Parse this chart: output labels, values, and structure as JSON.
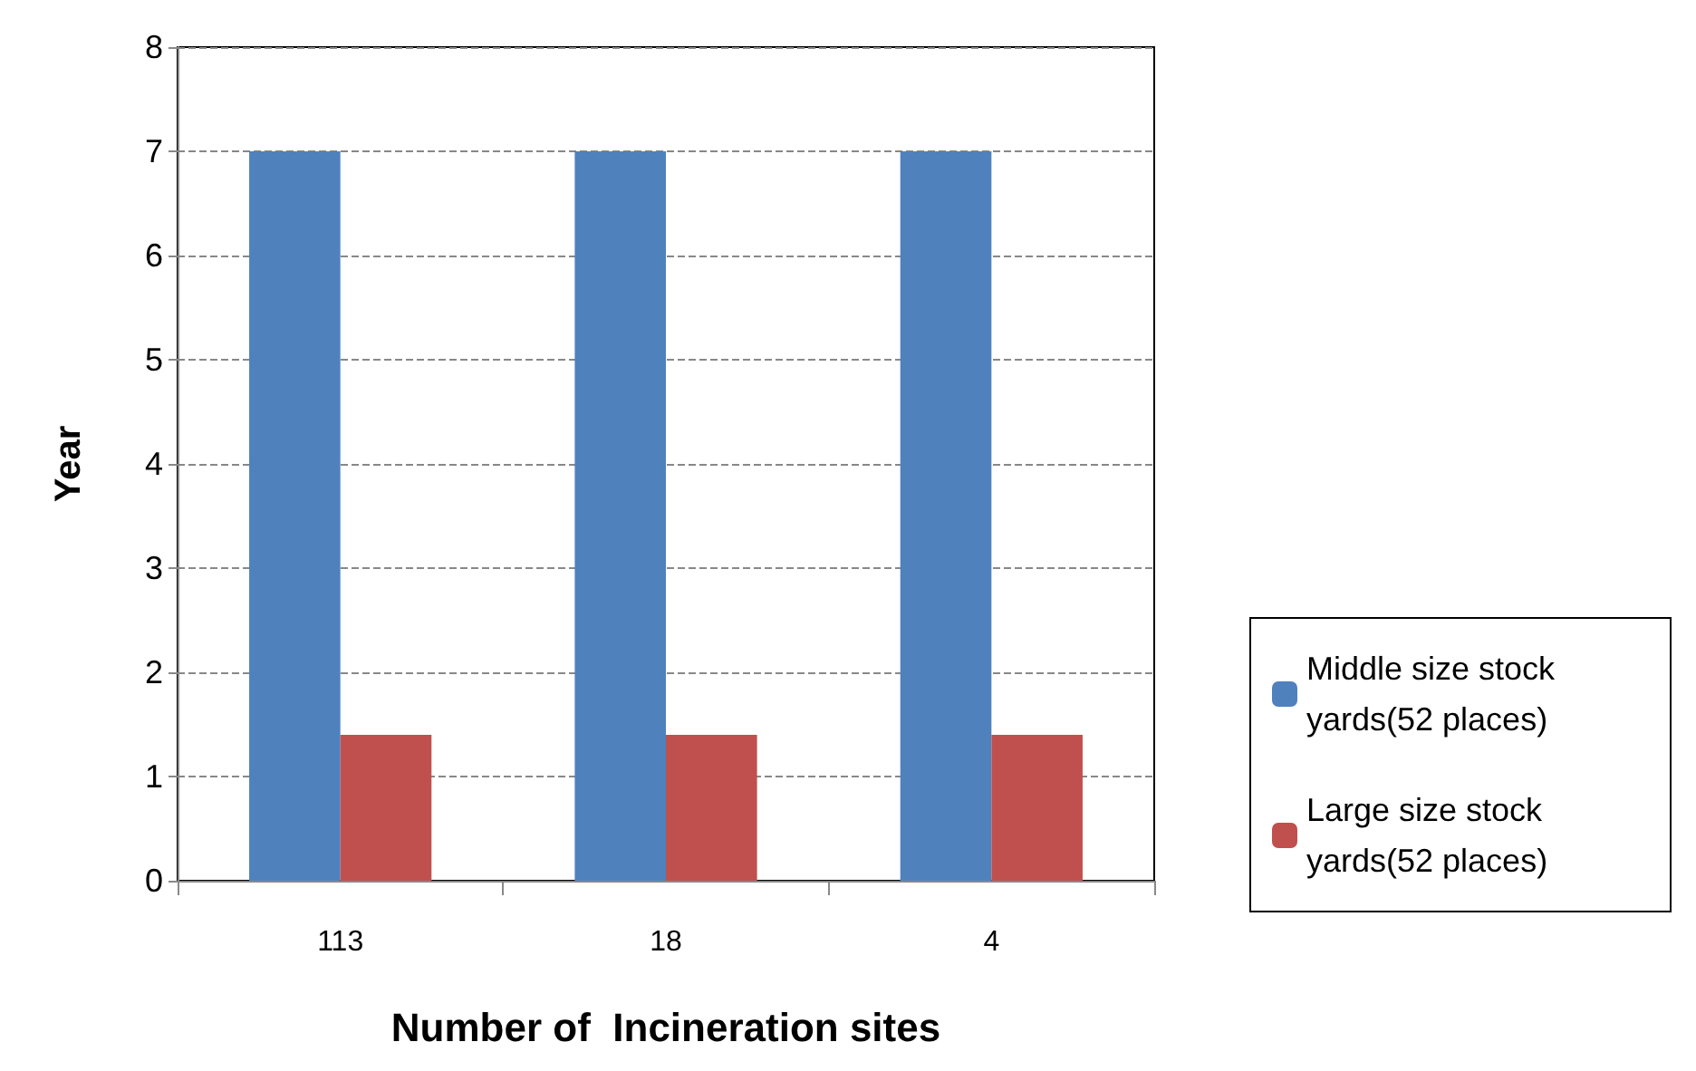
{
  "chart_data": {
    "type": "bar",
    "xlabel": "Number of  Incineration sites",
    "ylabel": "Year",
    "categories": [
      "113",
      "18",
      "4"
    ],
    "series": [
      {
        "name": "Middle size stock yards(52 places)",
        "color": "#4f81bd",
        "values": [
          7,
          7,
          7
        ]
      },
      {
        "name": "Large size stock yards(52 places)",
        "color": "#c0504d",
        "values": [
          1.4,
          1.4,
          1.4
        ]
      }
    ],
    "ylim": [
      0,
      8
    ],
    "yticks": [
      0,
      1,
      2,
      3,
      4,
      5,
      6,
      7,
      8
    ],
    "grid": "y",
    "legend": "right"
  }
}
